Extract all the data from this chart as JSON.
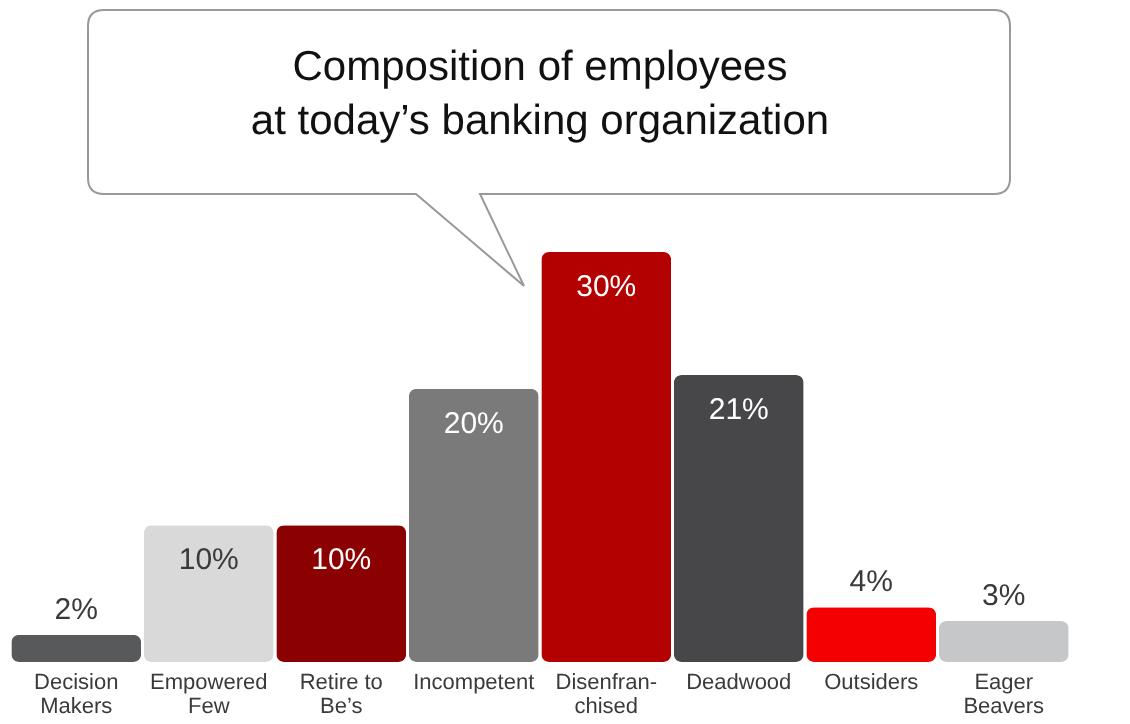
{
  "chart_data": {
    "type": "bar",
    "title": "Composition of employees\nat today’s banking organization",
    "categories": [
      "Decision\nMakers",
      "Empowered\nFew",
      "Retire to\nBe’s",
      "Incompetent",
      "Disenfran-\nchised",
      "Deadwood",
      "Outsiders",
      "Eager\nBeavers"
    ],
    "values": [
      2,
      10,
      10,
      20,
      30,
      21,
      4,
      3
    ],
    "colors": [
      "#58595b",
      "#d9d9d9",
      "#8b0000",
      "#7a7a7a",
      "#b30000",
      "#474749",
      "#f50000",
      "#c6c7c8"
    ],
    "value_labels": [
      "2%",
      "10%",
      "10%",
      "20%",
      "30%",
      "21%",
      "4%",
      "3%"
    ]
  }
}
